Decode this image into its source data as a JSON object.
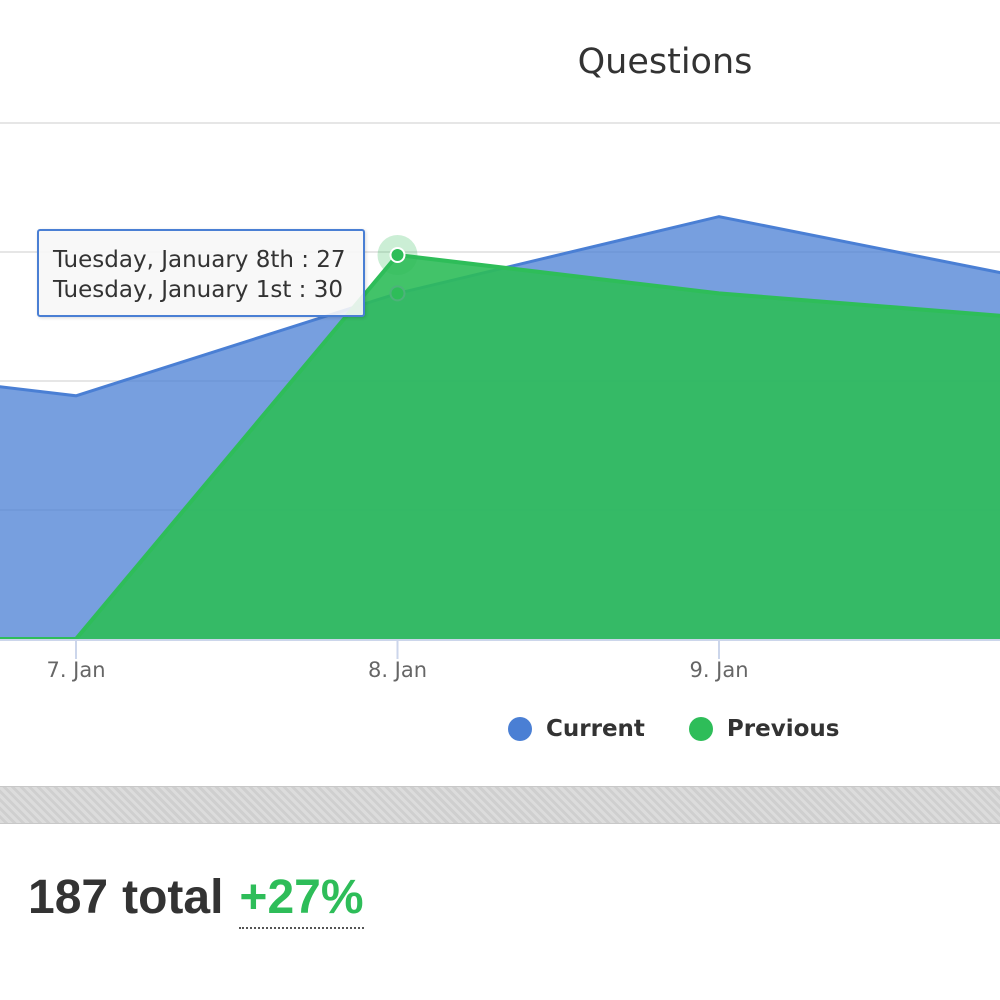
{
  "chart_data": {
    "type": "area",
    "title": "Questions",
    "categories": [
      "7. Jan",
      "8. Jan",
      "9. Jan"
    ],
    "series": [
      {
        "name": "Current",
        "color": "#4a7fd4",
        "values": [
          19,
          27,
          33
        ]
      },
      {
        "name": "Previous",
        "color": "#2ebd59",
        "values": [
          0,
          30,
          27
        ]
      }
    ],
    "tooltip": {
      "lines": [
        "Tuesday, January 8th : 27",
        "Tuesday, January 1st : 30"
      ]
    },
    "legend_position": "bottom-center",
    "grid": true
  },
  "summary": {
    "total_number": "187",
    "total_label": "total",
    "change": "+27%",
    "change_color": "#2ebd59"
  }
}
